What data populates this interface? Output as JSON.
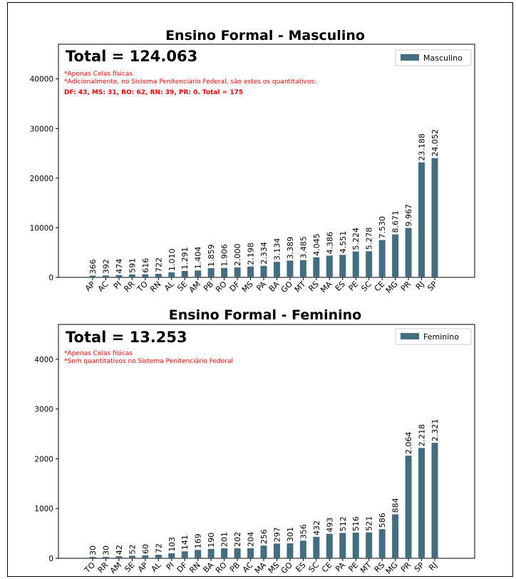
{
  "chart_data": [
    {
      "type": "bar",
      "title": "Ensino Formal - Masculino",
      "total_label": "Total = 124.063",
      "notes": [
        "*Apenas Celas físicas",
        "*Adicionalmente, no Sistema Penitenciário Federal, são estes os quantitativos:",
        "DF: 43, MS: 31, RO: 62, RN: 39, PR: 0. Total = 175"
      ],
      "legend": [
        "Masculino"
      ],
      "bar_color": "#436e82",
      "ylim": [
        0,
        47000
      ],
      "yticks": [
        0,
        10000,
        20000,
        30000,
        40000
      ],
      "categories": [
        "AP",
        "AC",
        "PI",
        "RR",
        "TO",
        "RN",
        "AL",
        "SE",
        "AM",
        "PB",
        "RO",
        "DF",
        "MS",
        "PA",
        "BA",
        "GO",
        "MT",
        "RS",
        "MA",
        "ES",
        "PE",
        "SC",
        "CE",
        "MG",
        "PR",
        "RJ",
        "SP"
      ],
      "values": [
        366,
        392,
        474,
        591,
        616,
        722,
        1010,
        1291,
        1404,
        1859,
        1906,
        2000,
        2198,
        2334,
        3134,
        3389,
        3485,
        4045,
        4386,
        4551,
        5224,
        5278,
        7530,
        8671,
        9967,
        23188,
        24052
      ],
      "value_labels": [
        "366",
        "392",
        "474",
        "591",
        "616",
        "722",
        "1.010",
        "1.291",
        "1.404",
        "1.859",
        "1.906",
        "2.000",
        "2.198",
        "2.334",
        "3.134",
        "3.389",
        "3.485",
        "4.045",
        "4.386",
        "4.551",
        "5.224",
        "5.278",
        "7.530",
        "8.671",
        "9.967",
        "23.188",
        "24.052"
      ],
      "grid": false,
      "legend_position": "top-right"
    },
    {
      "type": "bar",
      "title": "Ensino Formal - Feminino",
      "total_label": "Total = 13.253",
      "notes": [
        "*Apenas Celas físicas",
        "*Sem quantitativos no Sistema Penitenciário Federal"
      ],
      "legend": [
        "Feminino"
      ],
      "bar_color": "#436e82",
      "ylim": [
        0,
        4700
      ],
      "yticks": [
        0,
        1000,
        2000,
        3000,
        4000
      ],
      "categories": [
        "TO",
        "RR",
        "AM",
        "SE",
        "AP",
        "AL",
        "PI",
        "DF",
        "RN",
        "BA",
        "RO",
        "PB",
        "AC",
        "MA",
        "MS",
        "GO",
        "ES",
        "SC",
        "CE",
        "PA",
        "PE",
        "MT",
        "RS",
        "MG",
        "PR",
        "SP",
        "RJ"
      ],
      "values": [
        30,
        30,
        42,
        52,
        60,
        72,
        103,
        141,
        169,
        190,
        201,
        202,
        204,
        256,
        297,
        301,
        356,
        432,
        493,
        512,
        516,
        521,
        586,
        884,
        2064,
        2218,
        2321
      ],
      "value_labels": [
        "30",
        "30",
        "42",
        "52",
        "60",
        "72",
        "103",
        "141",
        "169",
        "190",
        "201",
        "202",
        "204",
        "256",
        "297",
        "301",
        "356",
        "432",
        "493",
        "512",
        "516",
        "521",
        "586",
        "884",
        "2.064",
        "2.218",
        "2.321"
      ],
      "grid": false,
      "legend_position": "top-right"
    }
  ]
}
